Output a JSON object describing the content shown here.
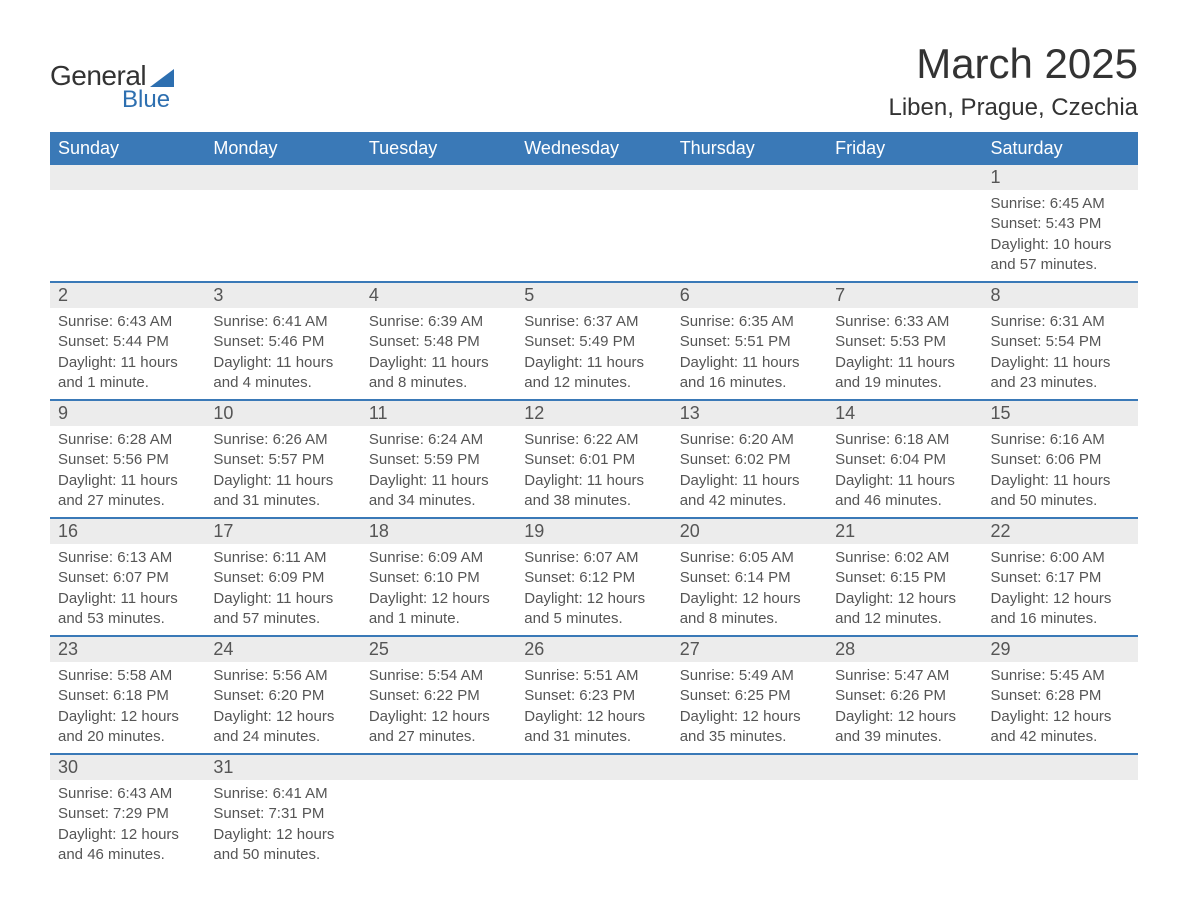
{
  "brand": {
    "word1": "General",
    "word2": "Blue"
  },
  "title": "March 2025",
  "location": "Liben, Prague, Czechia",
  "colors": {
    "header_bg": "#3a79b7",
    "header_text": "#ffffff",
    "row_divider": "#3a79b7",
    "daynum_bg": "#ececec",
    "text": "#555555",
    "title_text": "#333333",
    "brand_accent": "#2d6fb0",
    "page_bg": "#ffffff"
  },
  "typography": {
    "title_fontsize": 42,
    "location_fontsize": 24,
    "header_fontsize": 18,
    "daynum_fontsize": 18,
    "body_fontsize": 15
  },
  "weekdays": [
    "Sunday",
    "Monday",
    "Tuesday",
    "Wednesday",
    "Thursday",
    "Friday",
    "Saturday"
  ],
  "weeks": [
    [
      null,
      null,
      null,
      null,
      null,
      null,
      {
        "n": "1",
        "sunrise": "Sunrise: 6:45 AM",
        "sunset": "Sunset: 5:43 PM",
        "dl1": "Daylight: 10 hours",
        "dl2": "and 57 minutes."
      }
    ],
    [
      {
        "n": "2",
        "sunrise": "Sunrise: 6:43 AM",
        "sunset": "Sunset: 5:44 PM",
        "dl1": "Daylight: 11 hours",
        "dl2": "and 1 minute."
      },
      {
        "n": "3",
        "sunrise": "Sunrise: 6:41 AM",
        "sunset": "Sunset: 5:46 PM",
        "dl1": "Daylight: 11 hours",
        "dl2": "and 4 minutes."
      },
      {
        "n": "4",
        "sunrise": "Sunrise: 6:39 AM",
        "sunset": "Sunset: 5:48 PM",
        "dl1": "Daylight: 11 hours",
        "dl2": "and 8 minutes."
      },
      {
        "n": "5",
        "sunrise": "Sunrise: 6:37 AM",
        "sunset": "Sunset: 5:49 PM",
        "dl1": "Daylight: 11 hours",
        "dl2": "and 12 minutes."
      },
      {
        "n": "6",
        "sunrise": "Sunrise: 6:35 AM",
        "sunset": "Sunset: 5:51 PM",
        "dl1": "Daylight: 11 hours",
        "dl2": "and 16 minutes."
      },
      {
        "n": "7",
        "sunrise": "Sunrise: 6:33 AM",
        "sunset": "Sunset: 5:53 PM",
        "dl1": "Daylight: 11 hours",
        "dl2": "and 19 minutes."
      },
      {
        "n": "8",
        "sunrise": "Sunrise: 6:31 AM",
        "sunset": "Sunset: 5:54 PM",
        "dl1": "Daylight: 11 hours",
        "dl2": "and 23 minutes."
      }
    ],
    [
      {
        "n": "9",
        "sunrise": "Sunrise: 6:28 AM",
        "sunset": "Sunset: 5:56 PM",
        "dl1": "Daylight: 11 hours",
        "dl2": "and 27 minutes."
      },
      {
        "n": "10",
        "sunrise": "Sunrise: 6:26 AM",
        "sunset": "Sunset: 5:57 PM",
        "dl1": "Daylight: 11 hours",
        "dl2": "and 31 minutes."
      },
      {
        "n": "11",
        "sunrise": "Sunrise: 6:24 AM",
        "sunset": "Sunset: 5:59 PM",
        "dl1": "Daylight: 11 hours",
        "dl2": "and 34 minutes."
      },
      {
        "n": "12",
        "sunrise": "Sunrise: 6:22 AM",
        "sunset": "Sunset: 6:01 PM",
        "dl1": "Daylight: 11 hours",
        "dl2": "and 38 minutes."
      },
      {
        "n": "13",
        "sunrise": "Sunrise: 6:20 AM",
        "sunset": "Sunset: 6:02 PM",
        "dl1": "Daylight: 11 hours",
        "dl2": "and 42 minutes."
      },
      {
        "n": "14",
        "sunrise": "Sunrise: 6:18 AM",
        "sunset": "Sunset: 6:04 PM",
        "dl1": "Daylight: 11 hours",
        "dl2": "and 46 minutes."
      },
      {
        "n": "15",
        "sunrise": "Sunrise: 6:16 AM",
        "sunset": "Sunset: 6:06 PM",
        "dl1": "Daylight: 11 hours",
        "dl2": "and 50 minutes."
      }
    ],
    [
      {
        "n": "16",
        "sunrise": "Sunrise: 6:13 AM",
        "sunset": "Sunset: 6:07 PM",
        "dl1": "Daylight: 11 hours",
        "dl2": "and 53 minutes."
      },
      {
        "n": "17",
        "sunrise": "Sunrise: 6:11 AM",
        "sunset": "Sunset: 6:09 PM",
        "dl1": "Daylight: 11 hours",
        "dl2": "and 57 minutes."
      },
      {
        "n": "18",
        "sunrise": "Sunrise: 6:09 AM",
        "sunset": "Sunset: 6:10 PM",
        "dl1": "Daylight: 12 hours",
        "dl2": "and 1 minute."
      },
      {
        "n": "19",
        "sunrise": "Sunrise: 6:07 AM",
        "sunset": "Sunset: 6:12 PM",
        "dl1": "Daylight: 12 hours",
        "dl2": "and 5 minutes."
      },
      {
        "n": "20",
        "sunrise": "Sunrise: 6:05 AM",
        "sunset": "Sunset: 6:14 PM",
        "dl1": "Daylight: 12 hours",
        "dl2": "and 8 minutes."
      },
      {
        "n": "21",
        "sunrise": "Sunrise: 6:02 AM",
        "sunset": "Sunset: 6:15 PM",
        "dl1": "Daylight: 12 hours",
        "dl2": "and 12 minutes."
      },
      {
        "n": "22",
        "sunrise": "Sunrise: 6:00 AM",
        "sunset": "Sunset: 6:17 PM",
        "dl1": "Daylight: 12 hours",
        "dl2": "and 16 minutes."
      }
    ],
    [
      {
        "n": "23",
        "sunrise": "Sunrise: 5:58 AM",
        "sunset": "Sunset: 6:18 PM",
        "dl1": "Daylight: 12 hours",
        "dl2": "and 20 minutes."
      },
      {
        "n": "24",
        "sunrise": "Sunrise: 5:56 AM",
        "sunset": "Sunset: 6:20 PM",
        "dl1": "Daylight: 12 hours",
        "dl2": "and 24 minutes."
      },
      {
        "n": "25",
        "sunrise": "Sunrise: 5:54 AM",
        "sunset": "Sunset: 6:22 PM",
        "dl1": "Daylight: 12 hours",
        "dl2": "and 27 minutes."
      },
      {
        "n": "26",
        "sunrise": "Sunrise: 5:51 AM",
        "sunset": "Sunset: 6:23 PM",
        "dl1": "Daylight: 12 hours",
        "dl2": "and 31 minutes."
      },
      {
        "n": "27",
        "sunrise": "Sunrise: 5:49 AM",
        "sunset": "Sunset: 6:25 PM",
        "dl1": "Daylight: 12 hours",
        "dl2": "and 35 minutes."
      },
      {
        "n": "28",
        "sunrise": "Sunrise: 5:47 AM",
        "sunset": "Sunset: 6:26 PM",
        "dl1": "Daylight: 12 hours",
        "dl2": "and 39 minutes."
      },
      {
        "n": "29",
        "sunrise": "Sunrise: 5:45 AM",
        "sunset": "Sunset: 6:28 PM",
        "dl1": "Daylight: 12 hours",
        "dl2": "and 42 minutes."
      }
    ],
    [
      {
        "n": "30",
        "sunrise": "Sunrise: 6:43 AM",
        "sunset": "Sunset: 7:29 PM",
        "dl1": "Daylight: 12 hours",
        "dl2": "and 46 minutes."
      },
      {
        "n": "31",
        "sunrise": "Sunrise: 6:41 AM",
        "sunset": "Sunset: 7:31 PM",
        "dl1": "Daylight: 12 hours",
        "dl2": "and 50 minutes."
      },
      null,
      null,
      null,
      null,
      null
    ]
  ]
}
